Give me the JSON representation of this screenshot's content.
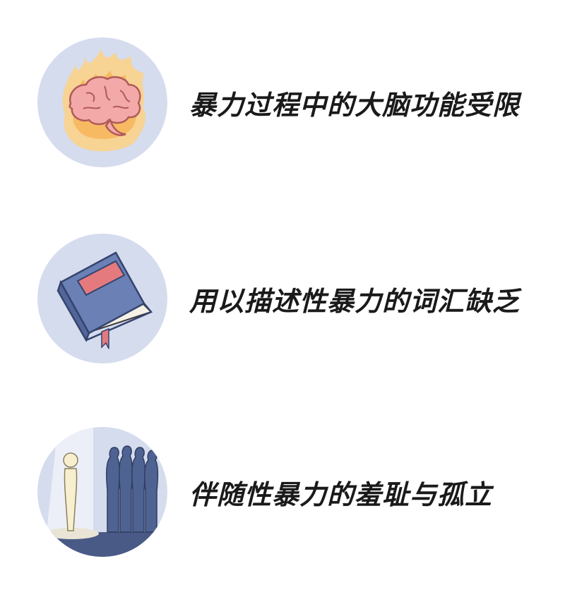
{
  "items": [
    {
      "label": "暴力过程中的大脑功能受限",
      "icon": "burning-brain"
    },
    {
      "label": "用以描述性暴力的词汇缺乏",
      "icon": "closed-book"
    },
    {
      "label": "伴随性暴力的羞耻与孤立",
      "icon": "isolated-figure"
    }
  ],
  "colors": {
    "circle_bg": "#d5dcee",
    "text": "#1a1a1a",
    "book_blue": "#6b80b5",
    "book_red": "#e57a7e",
    "flame": "#f7b55b",
    "brain": "#f3a9a8",
    "crowd": "#4f6392"
  }
}
